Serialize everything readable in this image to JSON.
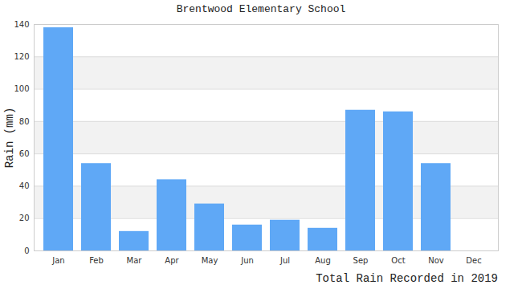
{
  "chart_data": {
    "type": "bar",
    "title": "Brentwood Elementary School",
    "caption": "Total Rain Recorded in 2019",
    "y_label": "Rain (mm)",
    "categories": [
      "Jan",
      "Feb",
      "Mar",
      "Apr",
      "May",
      "Jun",
      "Jul",
      "Aug",
      "Sep",
      "Oct",
      "Nov",
      "Dec"
    ],
    "values": [
      138,
      54,
      12,
      44,
      29,
      16,
      19,
      14,
      87,
      86,
      54,
      0
    ],
    "color": "#5fa8f6",
    "ylim": [
      0,
      140
    ],
    "yticks": [
      0,
      20,
      40,
      60,
      80,
      100,
      120,
      140
    ],
    "grid": true
  }
}
